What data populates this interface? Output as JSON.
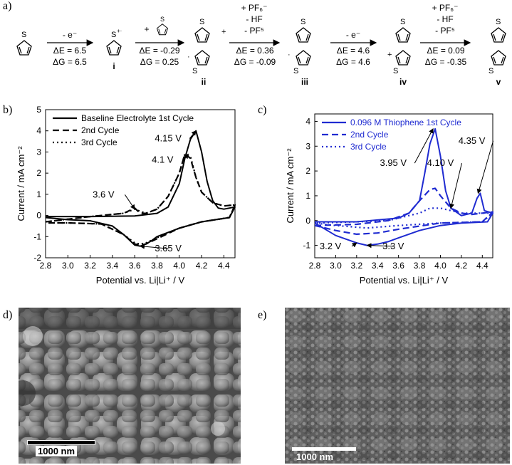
{
  "panel_labels": {
    "a": "a)",
    "b": "b)",
    "c": "c)",
    "d": "d)",
    "e": "e)"
  },
  "scheme": {
    "steps": [
      {
        "reagents_above": [
          "- e⁻"
        ],
        "dE": "ΔE = 6.5",
        "dG": "ΔG = 6.5"
      },
      {
        "reagents_above": [
          "+ thiophene"
        ],
        "dE": "ΔE = -0.29",
        "dG": "ΔG = 0.25"
      },
      {
        "reagents_above": [
          "+ PF₆⁻",
          "- HF",
          "- PF⁵"
        ],
        "dE": "ΔE = 0.36",
        "dG": "ΔG = -0.09"
      },
      {
        "reagents_above": [
          "- e⁻"
        ],
        "dE": "ΔE = 4.6",
        "dG": "ΔG = 4.6"
      },
      {
        "reagents_above": [
          "+ PF₆⁻",
          "- HF",
          "- PF⁵"
        ],
        "dE": "ΔE = 0.09",
        "dG": "ΔG = -0.35"
      }
    ],
    "compound_labels": [
      "i",
      "ii",
      "iii",
      "iv",
      "v"
    ],
    "radical_cation_sup": "+·"
  },
  "chart_data": [
    {
      "type": "line",
      "panel": "b",
      "xlabel": "Potential vs. Li|Li⁺ / V",
      "ylabel": "Current / mA cm⁻²",
      "xlim": [
        2.8,
        4.5
      ],
      "ylim": [
        -2,
        5
      ],
      "xticks": [
        "2.8",
        "3.0",
        "3.2",
        "3.4",
        "3.6",
        "3.8",
        "4.0",
        "4.2",
        "4.4"
      ],
      "yticks": [
        "-2",
        "-1",
        "0",
        "1",
        "2",
        "3",
        "4",
        "5"
      ],
      "legend_position": "top-left",
      "series": [
        {
          "name": "Baseline Electrolyte 1st Cycle",
          "style": "solid",
          "color": "#000000",
          "x": [
            2.8,
            3.2,
            3.6,
            3.8,
            3.9,
            4.0,
            4.05,
            4.1,
            4.15,
            4.2,
            4.25,
            4.3,
            4.35,
            4.4,
            4.5,
            4.45,
            4.2,
            4.0,
            3.8,
            3.75,
            3.7,
            3.65,
            3.6,
            3.5,
            3.4,
            3.2,
            3.0,
            2.8
          ],
          "y": [
            -0.05,
            -0.05,
            -0.02,
            0.1,
            0.4,
            1.5,
            2.7,
            3.6,
            4.0,
            3.0,
            1.6,
            0.7,
            0.35,
            0.3,
            0.4,
            -0.1,
            -0.3,
            -0.6,
            -1.0,
            -1.2,
            -1.35,
            -1.45,
            -1.4,
            -0.9,
            -0.5,
            -0.25,
            -0.2,
            -0.1
          ]
        },
        {
          "name": "2nd Cycle",
          "style": "dashed",
          "color": "#000000",
          "x": [
            2.8,
            3.2,
            3.5,
            3.6,
            3.65,
            3.7,
            3.8,
            3.9,
            4.0,
            4.05,
            4.1,
            4.15,
            4.2,
            4.3,
            4.4,
            4.5,
            4.45,
            4.2,
            4.0,
            3.8,
            3.7,
            3.65,
            3.6,
            3.5,
            3.3,
            3.0,
            2.8
          ],
          "y": [
            -0.3,
            -0.05,
            0.1,
            0.35,
            0.1,
            0.1,
            0.3,
            0.9,
            2.0,
            2.9,
            2.7,
            1.8,
            1.1,
            0.6,
            0.45,
            0.5,
            -0.1,
            -0.3,
            -0.6,
            -1.1,
            -1.35,
            -1.4,
            -1.35,
            -0.9,
            -0.4,
            -0.35,
            -0.35
          ]
        },
        {
          "name": "3rd Cycle",
          "style": "dotted",
          "color": "#000000",
          "x": [
            2.8,
            3.2,
            3.5,
            3.6,
            3.7,
            3.8,
            3.9,
            4.0,
            4.05,
            4.1,
            4.15,
            4.2,
            4.3,
            4.4,
            4.5,
            4.45,
            4.2,
            4.0,
            3.8,
            3.7,
            3.65,
            3.6,
            3.5,
            3.3,
            3.0,
            2.8
          ],
          "y": [
            -0.3,
            -0.05,
            0.1,
            0.3,
            0.1,
            0.3,
            0.9,
            2.0,
            2.9,
            2.8,
            1.8,
            1.1,
            0.6,
            0.45,
            0.5,
            -0.1,
            -0.3,
            -0.6,
            -1.05,
            -1.3,
            -1.35,
            -1.3,
            -0.9,
            -0.4,
            -0.35,
            -0.35
          ]
        }
      ],
      "annotations": [
        {
          "text": "4.15 V",
          "x": 4.15,
          "y": 4.0,
          "tx": 3.9,
          "ty": 3.5
        },
        {
          "text": "4.1 V",
          "x": 4.08,
          "y": 2.9,
          "tx": 3.85,
          "ty": 2.5
        },
        {
          "text": "3.6 V",
          "x": 3.6,
          "y": 0.3,
          "tx": 3.32,
          "ty": 0.85
        },
        {
          "text": "3.65 V",
          "x": 3.65,
          "y": -1.45,
          "tx": 3.9,
          "ty": -1.7
        }
      ]
    },
    {
      "type": "line",
      "panel": "c",
      "xlabel": "Potential vs. Li|Li⁺ / V",
      "ylabel": "Current / mA cm⁻²",
      "xlim": [
        2.8,
        4.5
      ],
      "ylim": [
        -1.5,
        4.3
      ],
      "xticks": [
        "2.8",
        "3.0",
        "3.2",
        "3.4",
        "3.6",
        "3.8",
        "4.0",
        "4.2",
        "4.4"
      ],
      "yticks": [
        "-1",
        "0",
        "1",
        "2",
        "3",
        "4"
      ],
      "legend_position": "top-left",
      "series": [
        {
          "name": "0.096 M Thiophene 1st Cycle",
          "style": "solid",
          "color": "#1f2bd1",
          "x": [
            2.8,
            3.2,
            3.6,
            3.7,
            3.8,
            3.85,
            3.9,
            3.95,
            4.0,
            4.05,
            4.1,
            4.2,
            4.3,
            4.35,
            4.38,
            4.42,
            4.5,
            4.45,
            4.2,
            4.0,
            3.8,
            3.6,
            3.5,
            3.4,
            3.3,
            3.2,
            3.0,
            2.8
          ],
          "y": [
            -0.05,
            -0.05,
            0.1,
            0.3,
            0.8,
            1.9,
            3.1,
            3.7,
            2.6,
            1.2,
            0.5,
            0.2,
            0.3,
            0.9,
            1.1,
            0.4,
            0.3,
            -0.05,
            -0.1,
            -0.2,
            -0.4,
            -0.7,
            -0.85,
            -0.95,
            -1.0,
            -0.9,
            -0.6,
            -0.1
          ]
        },
        {
          "name": "2nd Cycle",
          "style": "dashed",
          "color": "#1f2bd1",
          "x": [
            2.8,
            3.2,
            3.5,
            3.7,
            3.8,
            3.9,
            3.95,
            4.0,
            4.1,
            4.2,
            4.3,
            4.4,
            4.5,
            4.4,
            4.0,
            3.6,
            3.4,
            3.2,
            3.0,
            2.8
          ],
          "y": [
            -0.2,
            -0.15,
            0.0,
            0.3,
            0.8,
            1.25,
            1.3,
            1.0,
            0.5,
            0.3,
            0.25,
            0.3,
            0.35,
            -0.05,
            -0.1,
            -0.35,
            -0.5,
            -0.55,
            -0.4,
            -0.2
          ]
        },
        {
          "name": "3rd Cycle",
          "style": "dotted",
          "color": "#1f2bd1",
          "x": [
            2.8,
            3.2,
            3.5,
            3.8,
            3.9,
            4.0,
            4.2,
            4.4,
            4.5,
            4.4,
            4.0,
            3.6,
            3.3,
            3.0,
            2.8
          ],
          "y": [
            -0.1,
            -0.05,
            0.0,
            0.3,
            0.5,
            0.5,
            0.3,
            0.3,
            0.3,
            -0.05,
            -0.1,
            -0.2,
            -0.3,
            -0.2,
            -0.1
          ]
        }
      ],
      "annotations": [
        {
          "text": "3.95 V",
          "x": 3.93,
          "y": 3.7,
          "tx": 3.55,
          "ty": 2.2
        },
        {
          "text": "4.10 V",
          "x": 4.1,
          "y": 0.5,
          "tx": 4.0,
          "ty": 2.2
        },
        {
          "text": "4.35 V",
          "x": 4.36,
          "y": 1.1,
          "tx": 4.3,
          "ty": 3.1
        },
        {
          "text": "3.2 V",
          "x": 3.2,
          "y": -0.9,
          "tx": 2.95,
          "ty": -1.15
        },
        {
          "text": "3.3 V",
          "x": 3.3,
          "y": -1.0,
          "tx": 3.55,
          "ty": -1.15
        }
      ]
    }
  ],
  "micrographs": [
    {
      "panel": "d",
      "scale_bar": "1000 nm"
    },
    {
      "panel": "e",
      "scale_bar": "1000 nm"
    }
  ]
}
